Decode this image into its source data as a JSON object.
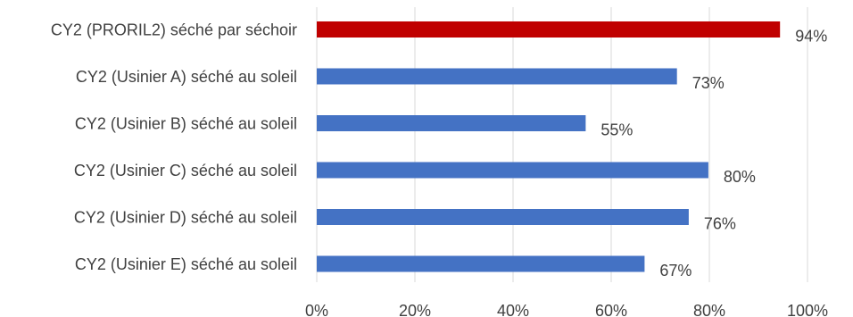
{
  "chart_data": {
    "type": "bar",
    "orientation": "horizontal",
    "title": "",
    "xlabel": "",
    "ylabel": "",
    "xlim": [
      0,
      100
    ],
    "ticks": [
      "0%",
      "20%",
      "40%",
      "60%",
      "80%",
      "100%"
    ],
    "tick_values": [
      0,
      20,
      40,
      60,
      80,
      100
    ],
    "grid": true,
    "legend": "none",
    "categories": [
      "CY2 (PRORIL2) séché par séchoir",
      "CY2 (Usinier A) séché au soleil",
      "CY2 (Usinier B) séché au soleil",
      "CY2 (Usinier C) séché au soleil",
      "CY2 (Usinier D) séché au soleil",
      "CY2 (Usinier E) séché au soleil"
    ],
    "values": [
      94.4,
      73.4,
      54.8,
      79.8,
      75.8,
      66.8
    ],
    "value_labels": [
      "94%",
      "73%",
      "55%",
      "80%",
      "76%",
      "67%"
    ],
    "colors": [
      "#C00000",
      "#4472C4",
      "#4472C4",
      "#4472C4",
      "#4472C4",
      "#4472C4"
    ],
    "gridline_color": "#D9D9D9",
    "text_color": "#404040"
  }
}
